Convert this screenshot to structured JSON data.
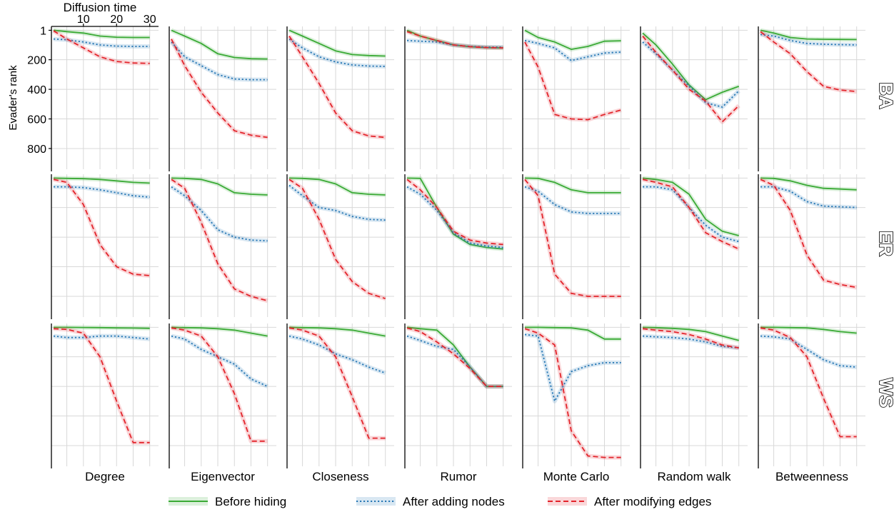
{
  "chart_data": {
    "type": "line",
    "top_axis_label": "Diffusion time",
    "ylabel": "Evader's rank",
    "x_ticks": [
      10,
      20,
      30
    ],
    "xlim": [
      1,
      32
    ],
    "y_ticks": [
      1,
      200,
      400,
      600,
      800
    ],
    "ylim": [
      940,
      -25
    ],
    "grid": true,
    "legend_position": "bottom",
    "rows": [
      "BA",
      "ER",
      "WS"
    ],
    "columns": [
      "Degree",
      "Eigenvector",
      "Closeness",
      "Rumor",
      "Monte Carlo",
      "Random walk",
      "Betweenness"
    ],
    "x": [
      1,
      5,
      10,
      15,
      20,
      25,
      30
    ],
    "series_styles": [
      {
        "name": "Before hiding",
        "color": "#3aaa35",
        "dash": "solid"
      },
      {
        "name": "After adding nodes",
        "color": "#2878b5",
        "dash": "dotted"
      },
      {
        "name": "After modifying edges",
        "color": "#e3242b",
        "dash": "dashed"
      }
    ],
    "panels": [
      {
        "row": "BA",
        "column": "Degree",
        "series": [
          {
            "name": "Before hiding",
            "values": [
              1,
              10,
              20,
              40,
              48,
              50,
              50
            ]
          },
          {
            "name": "After adding nodes",
            "values": [
              60,
              65,
              80,
              100,
              108,
              110,
              110
            ]
          },
          {
            "name": "After modifying edges",
            "values": [
              5,
              60,
              120,
              180,
              212,
              222,
              225
            ]
          }
        ]
      },
      {
        "row": "BA",
        "column": "Eigenvector",
        "series": [
          {
            "name": "Before hiding",
            "values": [
              1,
              40,
              90,
              160,
              185,
              193,
              195
            ]
          },
          {
            "name": "After adding nodes",
            "values": [
              80,
              180,
              240,
              300,
              330,
              335,
              335
            ]
          },
          {
            "name": "After modifying edges",
            "values": [
              60,
              240,
              420,
              560,
              680,
              710,
              725
            ]
          }
        ]
      },
      {
        "row": "BA",
        "column": "Closeness",
        "series": [
          {
            "name": "Before hiding",
            "values": [
              1,
              40,
              90,
              140,
              165,
              172,
              175
            ]
          },
          {
            "name": "After adding nodes",
            "values": [
              60,
              120,
              180,
              215,
              235,
              243,
              245
            ]
          },
          {
            "name": "After modifying edges",
            "values": [
              40,
              180,
              360,
              560,
              680,
              715,
              725
            ]
          }
        ]
      },
      {
        "row": "BA",
        "column": "Rumor",
        "series": [
          {
            "name": "Before hiding",
            "values": [
              1,
              40,
              70,
              100,
              112,
              118,
              120
            ]
          },
          {
            "name": "After adding nodes",
            "values": [
              70,
              75,
              80,
              100,
              110,
              115,
              115
            ]
          },
          {
            "name": "After modifying edges",
            "values": [
              10,
              40,
              70,
              100,
              112,
              118,
              120
            ]
          }
        ]
      },
      {
        "row": "BA",
        "column": "Monte Carlo",
        "series": [
          {
            "name": "Before hiding",
            "values": [
              1,
              50,
              80,
              130,
              110,
              75,
              72
            ]
          },
          {
            "name": "After adding nodes",
            "values": [
              70,
              90,
              120,
              205,
              180,
              155,
              148
            ]
          },
          {
            "name": "After modifying edges",
            "values": [
              80,
              250,
              570,
              600,
              605,
              570,
              540
            ]
          }
        ]
      },
      {
        "row": "BA",
        "column": "Random walk",
        "series": [
          {
            "name": "Before hiding",
            "values": [
              20,
              100,
              230,
              370,
              470,
              420,
              380
            ]
          },
          {
            "name": "After adding nodes",
            "values": [
              80,
              160,
              270,
              380,
              490,
              520,
              410
            ]
          },
          {
            "name": "After modifying edges",
            "values": [
              40,
              150,
              270,
              400,
              480,
              620,
              510
            ]
          }
        ]
      },
      {
        "row": "BA",
        "column": "Betweenness",
        "series": [
          {
            "name": "Before hiding",
            "values": [
              1,
              20,
              50,
              60,
              62,
              63,
              64
            ]
          },
          {
            "name": "After adding nodes",
            "values": [
              30,
              40,
              70,
              90,
              95,
              98,
              100
            ]
          },
          {
            "name": "After modifying edges",
            "values": [
              10,
              80,
              160,
              280,
              380,
              405,
              415
            ]
          }
        ]
      },
      {
        "row": "ER",
        "column": "Degree",
        "series": [
          {
            "name": "Before hiding",
            "values": [
              1,
              3,
              5,
              10,
              20,
              30,
              35
            ]
          },
          {
            "name": "After adding nodes",
            "values": [
              60,
              60,
              65,
              80,
              100,
              120,
              130
            ]
          },
          {
            "name": "After modifying edges",
            "values": [
              10,
              30,
              180,
              450,
              600,
              650,
              660
            ]
          }
        ]
      },
      {
        "row": "ER",
        "column": "Eigenvector",
        "series": [
          {
            "name": "Before hiding",
            "values": [
              1,
              3,
              10,
              40,
              100,
              110,
              115
            ]
          },
          {
            "name": "After adding nodes",
            "values": [
              60,
              120,
              220,
              350,
              400,
              420,
              425
            ]
          },
          {
            "name": "After modifying edges",
            "values": [
              10,
              70,
              300,
              580,
              750,
              800,
              830
            ]
          }
        ]
      },
      {
        "row": "ER",
        "column": "Closeness",
        "series": [
          {
            "name": "Before hiding",
            "values": [
              1,
              3,
              10,
              40,
              100,
              110,
              115
            ]
          },
          {
            "name": "After adding nodes",
            "values": [
              50,
              120,
              200,
              220,
              260,
              280,
              285
            ]
          },
          {
            "name": "After modifying edges",
            "values": [
              10,
              70,
              280,
              550,
              700,
              780,
              815
            ]
          }
        ]
      },
      {
        "row": "ER",
        "column": "Rumor",
        "series": [
          {
            "name": "Before hiding",
            "values": [
              1,
              3,
              200,
              380,
              450,
              470,
              480
            ]
          },
          {
            "name": "After adding nodes",
            "values": [
              60,
              110,
              220,
              370,
              440,
              460,
              470
            ]
          },
          {
            "name": "After modifying edges",
            "values": [
              10,
              80,
              200,
              360,
              420,
              440,
              450
            ]
          }
        ]
      },
      {
        "row": "ER",
        "column": "Monte Carlo",
        "series": [
          {
            "name": "Before hiding",
            "values": [
              1,
              3,
              30,
              80,
              100,
              100,
              100
            ]
          },
          {
            "name": "After adding nodes",
            "values": [
              60,
              90,
              180,
              230,
              240,
              240,
              240
            ]
          },
          {
            "name": "After modifying edges",
            "values": [
              10,
              120,
              650,
              780,
              800,
              800,
              800
            ]
          }
        ]
      },
      {
        "row": "ER",
        "column": "Random walk",
        "series": [
          {
            "name": "Before hiding",
            "values": [
              1,
              10,
              30,
              110,
              280,
              360,
              390
            ]
          },
          {
            "name": "After adding nodes",
            "values": [
              60,
              60,
              80,
              200,
              320,
              400,
              430
            ]
          },
          {
            "name": "After modifying edges",
            "values": [
              10,
              30,
              60,
              200,
              370,
              430,
              480
            ]
          }
        ]
      },
      {
        "row": "ER",
        "column": "Betweenness",
        "series": [
          {
            "name": "Before hiding",
            "values": [
              1,
              3,
              20,
              50,
              70,
              75,
              80
            ]
          },
          {
            "name": "After adding nodes",
            "values": [
              60,
              60,
              90,
              160,
              190,
              195,
              200
            ]
          },
          {
            "name": "After modifying edges",
            "values": [
              10,
              50,
              220,
              520,
              690,
              720,
              740
            ]
          }
        ]
      },
      {
        "row": "WS",
        "column": "Degree",
        "series": [
          {
            "name": "Before hiding",
            "values": [
              1,
              1,
              2,
              3,
              5,
              6,
              8
            ]
          },
          {
            "name": "After adding nodes",
            "values": [
              60,
              70,
              70,
              60,
              60,
              70,
              80
            ]
          },
          {
            "name": "After modifying edges",
            "values": [
              10,
              15,
              40,
              200,
              500,
              780,
              780
            ]
          }
        ]
      },
      {
        "row": "WS",
        "column": "Eigenvector",
        "series": [
          {
            "name": "Before hiding",
            "values": [
              1,
              3,
              5,
              10,
              20,
              40,
              60
            ]
          },
          {
            "name": "After adding nodes",
            "values": [
              60,
              80,
              150,
              200,
              250,
              350,
              400
            ]
          },
          {
            "name": "After modifying edges",
            "values": [
              5,
              20,
              60,
              200,
              450,
              770,
              770
            ]
          }
        ]
      },
      {
        "row": "WS",
        "column": "Closeness",
        "series": [
          {
            "name": "Before hiding",
            "values": [
              1,
              3,
              5,
              10,
              20,
              40,
              60
            ]
          },
          {
            "name": "After adding nodes",
            "values": [
              60,
              80,
              120,
              180,
              220,
              270,
              310
            ]
          },
          {
            "name": "After modifying edges",
            "values": [
              5,
              20,
              60,
              200,
              470,
              750,
              750
            ]
          }
        ]
      },
      {
        "row": "WS",
        "column": "Rumor",
        "series": [
          {
            "name": "Before hiding",
            "values": [
              1,
              10,
              20,
              120,
              270,
              400,
              400
            ]
          },
          {
            "name": "After adding nodes",
            "values": [
              60,
              90,
              130,
              150,
              270,
              400,
              400
            ]
          },
          {
            "name": "After modifying edges",
            "values": [
              5,
              30,
              100,
              180,
              280,
              400,
              400
            ]
          }
        ]
      },
      {
        "row": "WS",
        "column": "Monte Carlo",
        "series": [
          {
            "name": "Before hiding",
            "values": [
              1,
              1,
              3,
              5,
              20,
              80,
              80
            ]
          },
          {
            "name": "After adding nodes",
            "values": [
              50,
              60,
              500,
              300,
              260,
              240,
              240
            ]
          },
          {
            "name": "After modifying edges",
            "values": [
              10,
              40,
              120,
              700,
              870,
              880,
              880
            ]
          }
        ]
      },
      {
        "row": "WS",
        "column": "Random walk",
        "series": [
          {
            "name": "Before hiding",
            "values": [
              1,
              3,
              8,
              15,
              30,
              60,
              90
            ]
          },
          {
            "name": "After adding nodes",
            "values": [
              60,
              65,
              70,
              80,
              100,
              130,
              140
            ]
          },
          {
            "name": "After modifying edges",
            "values": [
              10,
              20,
              30,
              50,
              80,
              120,
              140
            ]
          }
        ]
      },
      {
        "row": "WS",
        "column": "Betweenness",
        "series": [
          {
            "name": "Before hiding",
            "values": [
              1,
              1,
              3,
              5,
              15,
              30,
              40
            ]
          },
          {
            "name": "After adding nodes",
            "values": [
              60,
              65,
              80,
              150,
              220,
              260,
              270
            ]
          },
          {
            "name": "After modifying edges",
            "values": [
              5,
              20,
              70,
              200,
              480,
              740,
              740
            ]
          }
        ]
      }
    ]
  }
}
